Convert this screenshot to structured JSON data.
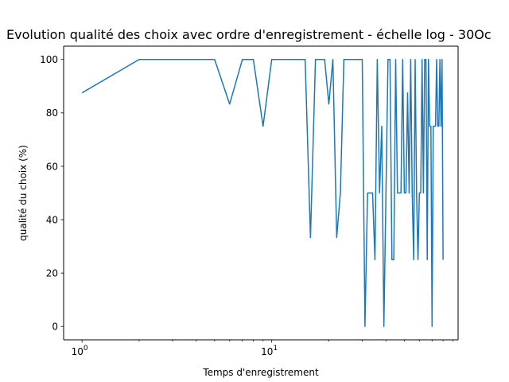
{
  "chart_data": {
    "type": "line",
    "title": "Evolution qualité des choix avec ordre d'enregistrement - échelle log - 30Oc",
    "xlabel": "Temps d'enregistrement",
    "ylabel": "qualité du choix (%)",
    "xscale": "log",
    "xlim": [
      0.8,
      96
    ],
    "ylim": [
      -5,
      105
    ],
    "grid": false,
    "x_major_ticks": [
      {
        "value": 1,
        "base": "10",
        "exp": "0"
      },
      {
        "value": 10,
        "base": "10",
        "exp": "1"
      }
    ],
    "x_minor_ticks": [
      2,
      3,
      4,
      5,
      6,
      7,
      8,
      9,
      20,
      30,
      40,
      50,
      60,
      70,
      80,
      90
    ],
    "y_ticks": [
      {
        "value": 0,
        "label": "0"
      },
      {
        "value": 20,
        "label": "20"
      },
      {
        "value": 40,
        "label": "40"
      },
      {
        "value": 60,
        "label": "60"
      },
      {
        "value": 80,
        "label": "80"
      },
      {
        "value": 100,
        "label": "100"
      }
    ],
    "series": [
      {
        "color": "#1f77b4",
        "x": [
          1,
          2,
          3,
          4,
          5,
          6,
          7,
          8,
          9,
          10,
          11,
          12,
          13,
          14,
          15,
          16,
          17,
          18,
          19,
          20,
          21,
          22,
          23,
          24,
          25,
          26,
          27,
          28,
          29,
          30,
          31,
          32,
          33,
          34,
          35,
          36,
          37,
          38,
          39,
          40,
          41,
          42,
          43,
          44,
          45,
          46,
          47,
          48,
          49,
          50,
          51,
          52,
          53,
          54,
          55,
          56,
          57,
          58,
          59,
          60,
          61,
          62,
          63,
          64,
          65,
          66,
          67,
          68,
          69,
          70,
          71,
          72,
          73,
          74,
          75,
          76,
          77,
          78,
          79,
          80
        ],
        "y": [
          87.5,
          100,
          100,
          100,
          100,
          83.3,
          100,
          100,
          75,
          100,
          100,
          100,
          100,
          100,
          100,
          33.3,
          100,
          100,
          100,
          83.3,
          100,
          33.3,
          50,
          100,
          100,
          100,
          100,
          100,
          100,
          100,
          0,
          50,
          50,
          50,
          25,
          100,
          50,
          75,
          0,
          50,
          100,
          100,
          25,
          25,
          100,
          50,
          50,
          50,
          100,
          50,
          50,
          87.5,
          50,
          100,
          50,
          25,
          100,
          50,
          25,
          50,
          50,
          100,
          50,
          100,
          100,
          25,
          100,
          75,
          75,
          0,
          75,
          75,
          75,
          100,
          75,
          75,
          100,
          75,
          100,
          25
        ]
      }
    ]
  }
}
